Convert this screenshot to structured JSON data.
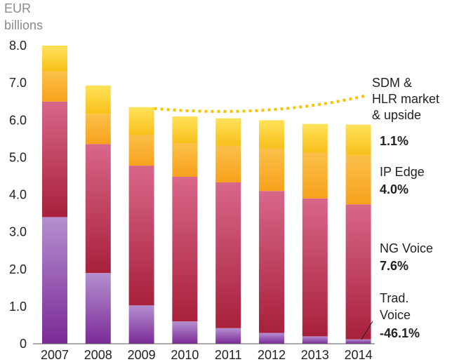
{
  "chart_data": {
    "type": "bar",
    "stacked": true,
    "unit_label_line1": "EUR",
    "unit_label_line2": "billions",
    "categories": [
      "2007",
      "2008",
      "2009",
      "2010",
      "2011",
      "2012",
      "2013",
      "2014"
    ],
    "ylim": [
      0,
      8.0
    ],
    "yticks": [
      "0",
      "1.0",
      "2.0",
      "3.0",
      "4.0",
      "5.0",
      "6.0",
      "7.0",
      "8.0"
    ],
    "grid": false,
    "series": [
      {
        "name": "Trad. Voice",
        "cagr": "-46.1%",
        "colors": [
          "#7a2a96",
          "#b58fd0"
        ],
        "values": [
          3.4,
          1.9,
          1.03,
          0.6,
          0.42,
          0.29,
          0.2,
          0.12
        ]
      },
      {
        "name": "NG Voice",
        "cagr": "7.6%",
        "colors": [
          "#a8203a",
          "#d8678a"
        ],
        "values": [
          3.1,
          3.46,
          3.75,
          3.88,
          3.91,
          3.81,
          3.7,
          3.62
        ]
      },
      {
        "name": "IP Edge",
        "cagr": "4.0%",
        "colors": [
          "#f7a21c",
          "#fbc04a"
        ],
        "values": [
          0.8,
          0.8,
          0.82,
          0.9,
          0.98,
          1.14,
          1.23,
          1.31
        ]
      },
      {
        "name": "SDM & HLR market & upside",
        "cagr": "1.1%",
        "colors": [
          "#f8c01a",
          "#ffe25a"
        ],
        "values": [
          0.7,
          0.77,
          0.75,
          0.72,
          0.74,
          0.76,
          0.77,
          0.83
        ]
      }
    ],
    "annotation_lines": [
      "SDM &",
      "HLR market",
      "& upside"
    ]
  },
  "colors": {
    "dotted_line": "#f5c400",
    "axis": "#555555"
  }
}
